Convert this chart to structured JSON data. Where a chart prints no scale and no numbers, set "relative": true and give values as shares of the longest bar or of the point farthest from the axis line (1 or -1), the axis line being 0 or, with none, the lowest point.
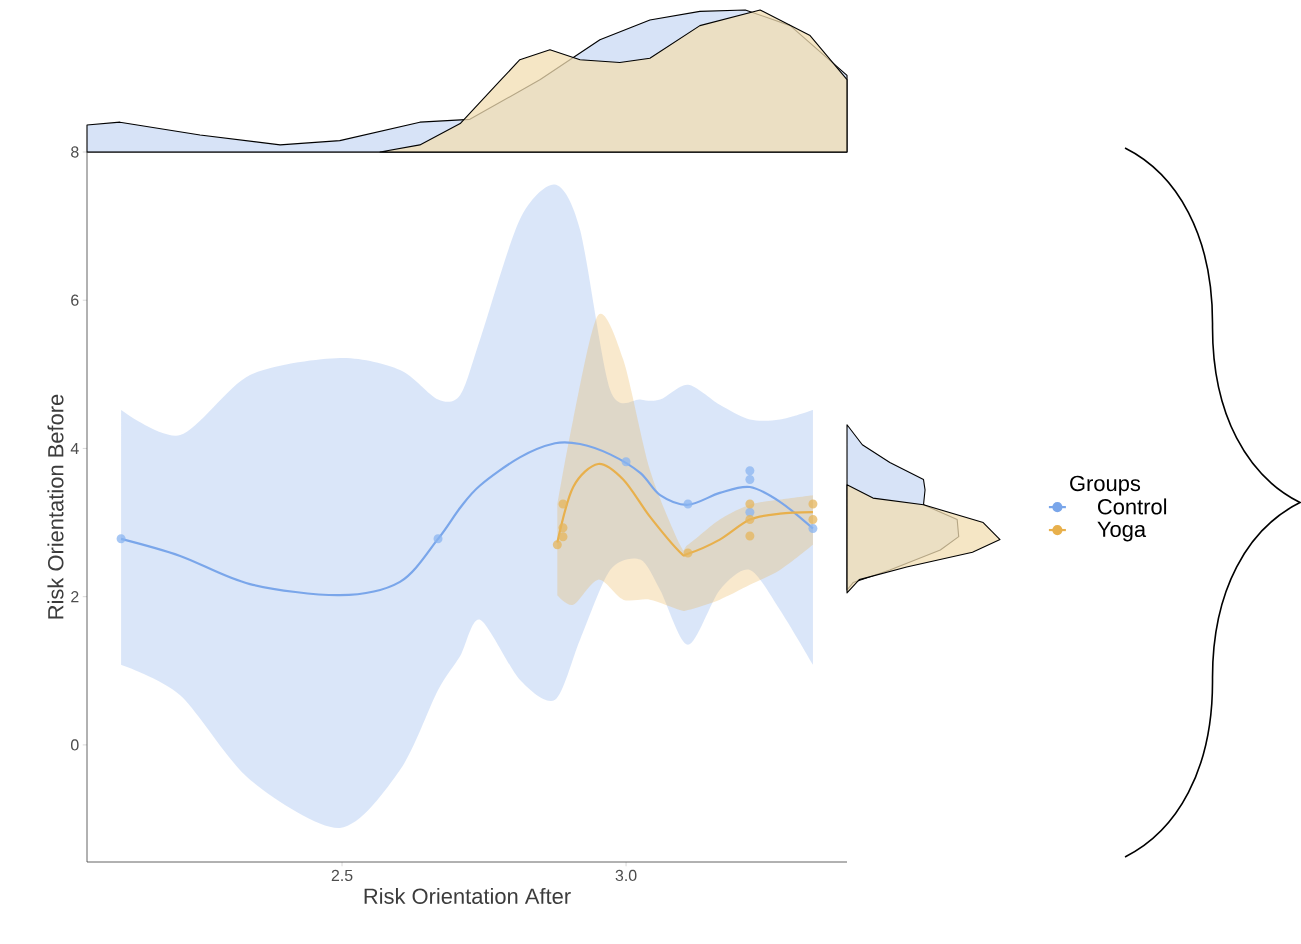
{
  "chart_data": [
    {
      "type": "area",
      "relative": true,
      "xlim": [
        2.051,
        3.389
      ],
      "tick_labels": false,
      "series": [
        {
          "color": "#c9d9f4",
          "x": [
            2.051,
            2.109,
            2.25,
            2.391,
            2.496,
            2.637,
            2.725,
            2.849,
            2.954,
            3.042,
            3.13,
            3.21,
            3.289,
            3.389
          ],
          "values": [
            0.19,
            0.21,
            0.12,
            0.05,
            0.08,
            0.21,
            0.23,
            0.51,
            0.79,
            0.93,
            0.99,
            1.0,
            0.89,
            0.54
          ]
        },
        {
          "color": "#f2ddb2",
          "x": [
            2.567,
            2.637,
            2.708,
            2.778,
            2.813,
            2.866,
            2.919,
            2.989,
            3.042,
            3.13,
            3.236,
            3.324,
            3.389
          ],
          "values": [
            0,
            0.05,
            0.2,
            0.5,
            0.65,
            0.72,
            0.65,
            0.63,
            0.66,
            0.89,
            1.0,
            0.82,
            0.51
          ]
        }
      ]
    },
    {
      "type": "scatter",
      "xlabel": "Risk Orientation After",
      "ylabel": "Risk Orientation Before",
      "legend_title": "Groups",
      "legend": "right",
      "marker": "circle",
      "xlim": [
        2.051,
        3.389
      ],
      "ylim": [
        -1.58,
        8
      ],
      "xticks": [
        2.5,
        {
          "value": 3,
          "label": "3.0"
        }
      ],
      "yticks": [
        0,
        2,
        4,
        6,
        8
      ],
      "series": [
        {
          "type": "line",
          "name": "Control",
          "color": "#7aa6ea",
          "line_style": "solid",
          "marker": "none",
          "x": [
            2.111,
            2.215,
            2.338,
            2.496,
            2.602,
            2.669,
            2.708,
            2.743,
            2.813,
            2.875,
            2.919,
            2.972,
            3.025,
            3.06,
            3.109,
            3.165,
            3.218,
            3.271,
            3.329
          ],
          "values": [
            2.78,
            2.55,
            2.17,
            2.02,
            2.2,
            2.78,
            3.2,
            3.5,
            3.88,
            4.07,
            4.06,
            3.92,
            3.67,
            3.37,
            3.24,
            3.4,
            3.48,
            3.28,
            2.92
          ],
          "upper": [
            4.52,
            4.18,
            4.99,
            5.22,
            5.06,
            4.66,
            4.72,
            5.47,
            7.09,
            7.56,
            6.95,
            4.79,
            4.66,
            4.66,
            4.86,
            4.59,
            4.39,
            4.39,
            4.52
          ],
          "lower": [
            1.08,
            0.67,
            -0.47,
            -1.12,
            -0.34,
            0.74,
            1.2,
            1.69,
            0.88,
            0.61,
            1.42,
            2.36,
            2.5,
            2.09,
            1.35,
            2.09,
            2.36,
            1.82,
            1.08
          ]
        },
        {
          "type": "line",
          "name": "Yoga",
          "color": "#e8b04c",
          "line_style": "solid",
          "marker": "none",
          "x": [
            2.879,
            2.907,
            2.951,
            2.995,
            3.042,
            3.095,
            3.109,
            3.165,
            3.218,
            3.271,
            3.329
          ],
          "values": [
            2.73,
            3.48,
            3.79,
            3.58,
            3.08,
            2.6,
            2.58,
            2.77,
            3.04,
            3.12,
            3.14
          ],
          "upper": [
            3.24,
            4.39,
            5.8,
            5.2,
            3.71,
            2.7,
            2.7,
            3.04,
            3.24,
            3.31,
            3.37
          ],
          "lower": [
            2.02,
            1.89,
            2.23,
            1.96,
            1.96,
            1.82,
            1.82,
            1.96,
            2.16,
            2.36,
            2.7
          ]
        },
        {
          "color": "#8ab4f0",
          "x": [
            2.111,
            2.669,
            3.0,
            3.109,
            3.218,
            3.218,
            3.218,
            3.329
          ],
          "values": [
            2.78,
            2.78,
            3.82,
            3.25,
            3.7,
            3.58,
            3.14,
            2.92
          ]
        },
        {
          "color": "#e6b55c",
          "x": [
            2.889,
            2.889,
            2.889,
            2.879,
            3.109,
            3.218,
            3.218,
            3.218,
            3.329,
            3.329
          ],
          "values": [
            3.25,
            2.93,
            2.81,
            2.7,
            2.59,
            3.25,
            3.04,
            2.82,
            3.25,
            3.04
          ]
        }
      ]
    },
    {
      "type": "area",
      "relative": true,
      "orientation": "horizontal",
      "yticks": [
        0,
        2,
        4,
        6,
        8
      ],
      "tick_labels": false,
      "series": [
        {
          "color": "#c9d9f4",
          "x": [
            4.32,
            4.05,
            3.81,
            3.58,
            3.44,
            3.24,
            3.04,
            2.81,
            2.63,
            2.36,
            2.19,
            2.09
          ],
          "values": [
            0,
            0.1,
            0.28,
            0.5,
            0.51,
            0.5,
            0.72,
            0.73,
            0.61,
            0.28,
            0.04,
            0
          ]
        },
        {
          "color": "#f2ddb2",
          "x": [
            3.51,
            3.33,
            3.24,
            3.0,
            2.77,
            2.6,
            2.4,
            2.23,
            2.05
          ],
          "values": [
            0,
            0.17,
            0.5,
            0.89,
            1.0,
            0.82,
            0.39,
            0.08,
            0
          ]
        }
      ]
    }
  ]
}
